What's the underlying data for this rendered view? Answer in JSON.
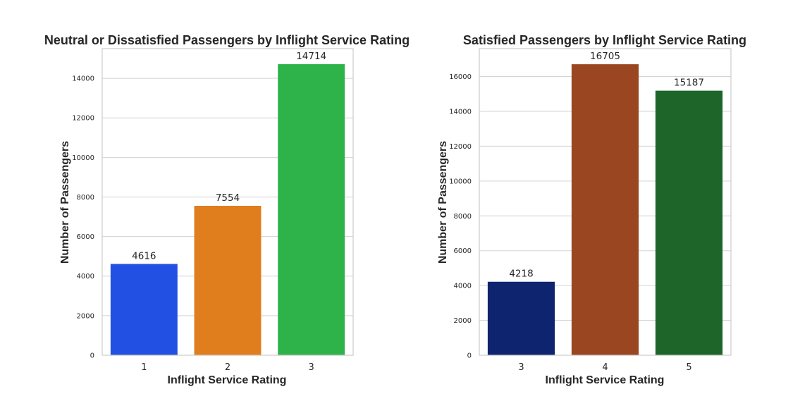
{
  "chart_data": [
    {
      "type": "bar",
      "title": "Neutral or Dissatisfied Passengers by Inflight Service Rating",
      "xlabel": "Inflight Service Rating",
      "ylabel": "Number of Passengers",
      "categories": [
        "1",
        "2",
        "3"
      ],
      "values": [
        4616,
        7554,
        14714
      ],
      "colors": [
        "#2150e3",
        "#e07e1e",
        "#2eb34a"
      ],
      "ylim": [
        0,
        15500
      ],
      "yticks": [
        0,
        2000,
        4000,
        6000,
        8000,
        10000,
        12000,
        14000
      ],
      "grid": true
    },
    {
      "type": "bar",
      "title": "Satisfied Passengers by Inflight Service Rating",
      "xlabel": "Inflight Service Rating",
      "ylabel": "Number of Passengers",
      "categories": [
        "3",
        "4",
        "5"
      ],
      "values": [
        4218,
        16705,
        15187
      ],
      "colors": [
        "#0e246e",
        "#9a4721",
        "#1d6528"
      ],
      "ylim": [
        0,
        17600
      ],
      "yticks": [
        0,
        2000,
        4000,
        6000,
        8000,
        10000,
        12000,
        14000,
        16000
      ],
      "grid": true
    }
  ]
}
